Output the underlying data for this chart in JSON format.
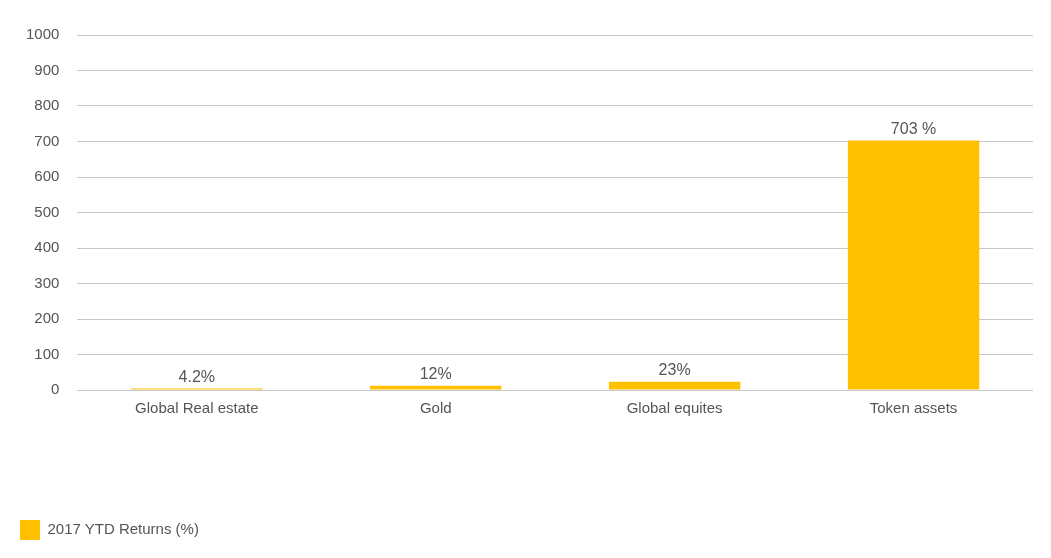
{
  "chart_data": {
    "type": "bar",
    "categories": [
      "Global Real estate",
      "Gold",
      "Global equites",
      "Token assets"
    ],
    "series": [
      {
        "name": "2017 YTD Returns (%)",
        "color": "#ffc000",
        "values": [
          4.2,
          12,
          23,
          703
        ],
        "value_labels": [
          "4.2%",
          "12%",
          "23%",
          "703 %"
        ]
      }
    ],
    "ylim": [
      0,
      1000
    ],
    "yticks": [
      0,
      100,
      200,
      300,
      400,
      500,
      600,
      700,
      800,
      900,
      1000
    ],
    "grid": "y",
    "legend": "bottom left"
  }
}
